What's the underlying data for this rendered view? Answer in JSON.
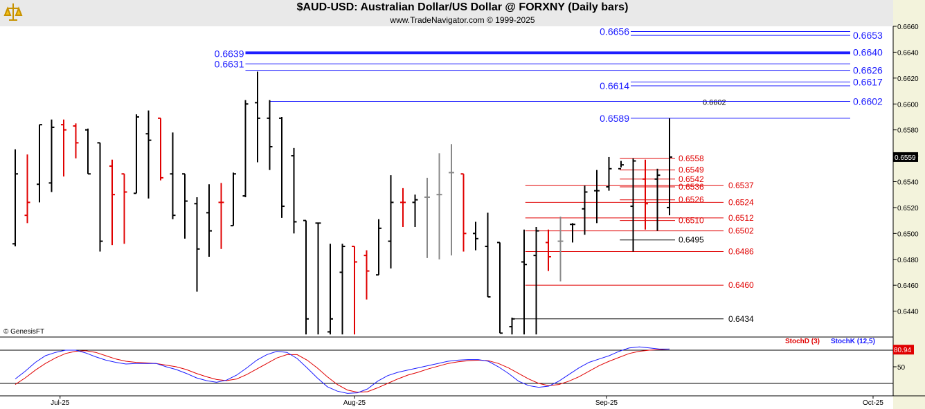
{
  "header": {
    "title": "$AUD-USD:  Australian Dollar/US Dollar @ FORXNY  (Daily bars)",
    "subtitle": "www.TradeNavigator.com © 1999-2025"
  },
  "copyright": "© GenesisFT",
  "indicator": {
    "stochd_label": "StochD (3)",
    "stochk_label": "StochK (12,5)",
    "stochd_color": "#e00000",
    "stochk_color": "#1a1aff",
    "last_value": "80.94",
    "y_tick": "50",
    "range": [
      0,
      100
    ],
    "stochk": [
      28,
      42,
      58,
      70,
      76,
      80,
      80,
      75,
      68,
      62,
      58,
      55,
      56,
      56,
      56,
      50,
      45,
      38,
      30,
      25,
      22,
      26,
      35,
      48,
      62,
      72,
      78,
      76,
      65,
      48,
      30,
      14,
      6,
      2,
      3,
      10,
      24,
      34,
      40,
      44,
      48,
      52,
      56,
      60,
      62,
      63,
      63,
      60,
      50,
      38,
      24,
      16,
      13,
      15,
      24,
      36,
      48,
      58,
      64,
      70,
      78,
      84,
      86,
      84,
      82,
      82
    ],
    "stochd": [
      18,
      30,
      44,
      56,
      66,
      74,
      78,
      79,
      76,
      70,
      64,
      60,
      58,
      57,
      56,
      53,
      50,
      45,
      38,
      32,
      27,
      25,
      28,
      36,
      46,
      56,
      66,
      72,
      72,
      62,
      48,
      32,
      18,
      8,
      4,
      5,
      12,
      20,
      28,
      35,
      40,
      46,
      51,
      56,
      59,
      61,
      62,
      61,
      56,
      48,
      38,
      28,
      20,
      16,
      18,
      24,
      32,
      42,
      52,
      60,
      67,
      74,
      78,
      80,
      81,
      82
    ]
  },
  "chart_data": {
    "type": "ohlc",
    "title": "$AUD-USD:  Australian Dollar/US Dollar @ FORXNY  (Daily bars)",
    "ylim": [
      0.642,
      0.666
    ],
    "y_ticks": [
      "0.6660",
      "0.6640",
      "0.6620",
      "0.6600",
      "0.6580",
      "0.6560",
      "0.6540",
      "0.6520",
      "0.6500",
      "0.6480",
      "0.6460",
      "0.6440"
    ],
    "x_ticks": [
      "Jul-25",
      "Aug-25",
      "Sep-25",
      "Oct-25"
    ],
    "x_tick_index": [
      3.7,
      28.0,
      48.8,
      70.8
    ],
    "last_price": "0.6559",
    "bars": [
      {
        "o": 0.6492,
        "h": 0.6565,
        "l": 0.649,
        "c": 0.6546,
        "col": "black"
      },
      {
        "o": 0.6514,
        "h": 0.6561,
        "l": 0.6508,
        "c": 0.6524,
        "col": "red"
      },
      {
        "o": 0.6538,
        "h": 0.6584,
        "l": 0.6524,
        "c": 0.6584,
        "col": "black"
      },
      {
        "o": 0.6539,
        "h": 0.6588,
        "l": 0.6532,
        "c": 0.6582,
        "col": "black"
      },
      {
        "o": 0.6584,
        "h": 0.6588,
        "l": 0.6544,
        "c": 0.658,
        "col": "red"
      },
      {
        "o": 0.6583,
        "h": 0.6585,
        "l": 0.6558,
        "c": 0.657,
        "col": "red"
      },
      {
        "o": 0.658,
        "h": 0.6581,
        "l": 0.6546,
        "c": 0.6546,
        "col": "black"
      },
      {
        "o": 0.657,
        "h": 0.657,
        "l": 0.6486,
        "c": 0.6494,
        "col": "black"
      },
      {
        "o": 0.6552,
        "h": 0.6557,
        "l": 0.6491,
        "c": 0.653,
        "col": "red"
      },
      {
        "o": 0.6546,
        "h": 0.6546,
        "l": 0.6492,
        "c": 0.6532,
        "col": "red"
      },
      {
        "o": 0.6531,
        "h": 0.6592,
        "l": 0.6531,
        "c": 0.659,
        "col": "black"
      },
      {
        "o": 0.6577,
        "h": 0.6595,
        "l": 0.6527,
        "c": 0.6572,
        "col": "black"
      },
      {
        "o": 0.6589,
        "h": 0.6589,
        "l": 0.6541,
        "c": 0.6543,
        "col": "red"
      },
      {
        "o": 0.6546,
        "h": 0.6578,
        "l": 0.6511,
        "c": 0.6514,
        "col": "black"
      },
      {
        "o": 0.6546,
        "h": 0.6546,
        "l": 0.6496,
        "c": 0.6525,
        "col": "black"
      },
      {
        "o": 0.6523,
        "h": 0.6528,
        "l": 0.6455,
        "c": 0.6488,
        "col": "black"
      },
      {
        "o": 0.6516,
        "h": 0.6538,
        "l": 0.6482,
        "c": 0.6502,
        "col": "black"
      },
      {
        "o": 0.6524,
        "h": 0.6539,
        "l": 0.6488,
        "c": 0.6524,
        "col": "red"
      },
      {
        "o": 0.6506,
        "h": 0.6547,
        "l": 0.6506,
        "c": 0.6546,
        "col": "black"
      },
      {
        "o": 0.6529,
        "h": 0.6603,
        "l": 0.6528,
        "c": 0.66,
        "col": "black"
      },
      {
        "o": 0.6601,
        "h": 0.6625,
        "l": 0.6555,
        "c": 0.6589,
        "col": "black"
      },
      {
        "o": 0.6589,
        "h": 0.6603,
        "l": 0.6549,
        "c": 0.6567,
        "col": "black"
      },
      {
        "o": 0.6589,
        "h": 0.659,
        "l": 0.6512,
        "c": 0.6521,
        "col": "black"
      },
      {
        "o": 0.656,
        "h": 0.6566,
        "l": 0.65,
        "c": 0.6509,
        "col": "black"
      },
      {
        "o": 0.651,
        "h": 0.651,
        "l": 0.6422,
        "c": 0.6434,
        "col": "black"
      },
      {
        "o": 0.6508,
        "h": 0.6508,
        "l": 0.6422,
        "c": 0.6508,
        "col": "black"
      },
      {
        "o": 0.6424,
        "h": 0.6492,
        "l": 0.6422,
        "c": 0.6434,
        "col": "black"
      },
      {
        "o": 0.647,
        "h": 0.6492,
        "l": 0.6422,
        "c": 0.649,
        "col": "black"
      },
      {
        "o": 0.649,
        "h": 0.649,
        "l": 0.6422,
        "c": 0.6478,
        "col": "red"
      },
      {
        "o": 0.6483,
        "h": 0.6487,
        "l": 0.6449,
        "c": 0.6471,
        "col": "red"
      },
      {
        "o": 0.6468,
        "h": 0.6511,
        "l": 0.6468,
        "c": 0.6504,
        "col": "black"
      },
      {
        "o": 0.6494,
        "h": 0.6545,
        "l": 0.6473,
        "c": 0.6524,
        "col": "black"
      },
      {
        "o": 0.6524,
        "h": 0.6535,
        "l": 0.6505,
        "c": 0.6524,
        "col": "red"
      },
      {
        "o": 0.6524,
        "h": 0.653,
        "l": 0.6505,
        "c": 0.6526,
        "col": "black"
      },
      {
        "o": 0.6528,
        "h": 0.6543,
        "l": 0.6481,
        "c": 0.6528,
        "col": "gray"
      },
      {
        "o": 0.653,
        "h": 0.6562,
        "l": 0.648,
        "c": 0.653,
        "col": "gray"
      },
      {
        "o": 0.6547,
        "h": 0.6569,
        "l": 0.6483,
        "c": 0.6547,
        "col": "gray"
      },
      {
        "o": 0.6546,
        "h": 0.6546,
        "l": 0.6486,
        "c": 0.65,
        "col": "red"
      },
      {
        "o": 0.65,
        "h": 0.6509,
        "l": 0.6487,
        "c": 0.6496,
        "col": "black"
      },
      {
        "o": 0.649,
        "h": 0.6516,
        "l": 0.6451,
        "c": 0.6451,
        "col": "black"
      },
      {
        "o": 0.6493,
        "h": 0.6493,
        "l": 0.6423,
        "c": 0.6423,
        "col": "black"
      },
      {
        "o": 0.6428,
        "h": 0.6435,
        "l": 0.6422,
        "c": 0.6434,
        "col": "black"
      },
      {
        "o": 0.6478,
        "h": 0.6503,
        "l": 0.6422,
        "c": 0.6476,
        "col": "black"
      },
      {
        "o": 0.6483,
        "h": 0.6505,
        "l": 0.6422,
        "c": 0.6502,
        "col": "black"
      },
      {
        "o": 0.6493,
        "h": 0.6503,
        "l": 0.6471,
        "c": 0.6482,
        "col": "red"
      },
      {
        "o": 0.6494,
        "h": 0.6513,
        "l": 0.6463,
        "c": 0.6494,
        "col": "gray"
      },
      {
        "o": 0.6507,
        "h": 0.6508,
        "l": 0.6493,
        "c": 0.6507,
        "col": "black"
      },
      {
        "o": 0.6519,
        "h": 0.6537,
        "l": 0.6499,
        "c": 0.6532,
        "col": "black"
      },
      {
        "o": 0.6533,
        "h": 0.6549,
        "l": 0.6508,
        "c": 0.6533,
        "col": "black"
      },
      {
        "o": 0.6536,
        "h": 0.6559,
        "l": 0.6533,
        "c": 0.655,
        "col": "black"
      },
      {
        "o": 0.655,
        "h": 0.6556,
        "l": 0.6551,
        "c": 0.6553,
        "col": "black"
      },
      {
        "o": 0.6521,
        "h": 0.6558,
        "l": 0.6486,
        "c": 0.6556,
        "col": "black"
      },
      {
        "o": 0.6542,
        "h": 0.6557,
        "l": 0.6503,
        "c": 0.6523,
        "col": "red"
      },
      {
        "o": 0.6542,
        "h": 0.655,
        "l": 0.6502,
        "c": 0.6545,
        "col": "black"
      },
      {
        "o": 0.652,
        "h": 0.6589,
        "l": 0.6514,
        "c": 0.6559,
        "col": "black"
      }
    ],
    "levels": [
      {
        "label": "0.6656",
        "color": "#1a1aff",
        "side": "left"
      },
      {
        "label": "0.6653",
        "color": "#1a1aff",
        "side": "right"
      },
      {
        "label": "0.6639",
        "color": "#1a1aff",
        "side": "left"
      },
      {
        "label": "0.6640",
        "color": "#1a1aff",
        "side": "right"
      },
      {
        "label": "0.6631",
        "color": "#1a1aff",
        "side": "left"
      },
      {
        "label": "0.6626",
        "color": "#1a1aff",
        "side": "right"
      },
      {
        "label": "0.6614",
        "color": "#1a1aff",
        "side": "left"
      },
      {
        "label": "0.6617",
        "color": "#1a1aff",
        "side": "right"
      },
      {
        "label": "0.6602",
        "color": "#000000",
        "side": "mid"
      },
      {
        "label": "0.6602",
        "color": "#1a1aff",
        "side": "right"
      },
      {
        "label": "0.6589",
        "color": "#1a1aff",
        "side": "left"
      },
      {
        "label": "0.6558",
        "color": "#e00000",
        "side": "end"
      },
      {
        "label": "0.6549",
        "color": "#e00000",
        "side": "end"
      },
      {
        "label": "0.6542",
        "color": "#e00000",
        "side": "end"
      },
      {
        "label": "0.6536",
        "color": "#e00000",
        "side": "end"
      },
      {
        "label": "0.6537",
        "color": "#e00000",
        "side": "end"
      },
      {
        "label": "0.6526",
        "color": "#e00000",
        "side": "end"
      },
      {
        "label": "0.6524",
        "color": "#e00000",
        "side": "end"
      },
      {
        "label": "0.6510",
        "color": "#e00000",
        "side": "end"
      },
      {
        "label": "0.6512",
        "color": "#e00000",
        "side": "end"
      },
      {
        "label": "0.6502",
        "color": "#e00000",
        "side": "end"
      },
      {
        "label": "0.6495",
        "color": "#000000",
        "side": "end"
      },
      {
        "label": "0.6486",
        "color": "#e00000",
        "side": "end"
      },
      {
        "label": "0.6460",
        "color": "#e00000",
        "side": "end"
      },
      {
        "label": "0.6434",
        "color": "#000000",
        "side": "end"
      }
    ]
  }
}
